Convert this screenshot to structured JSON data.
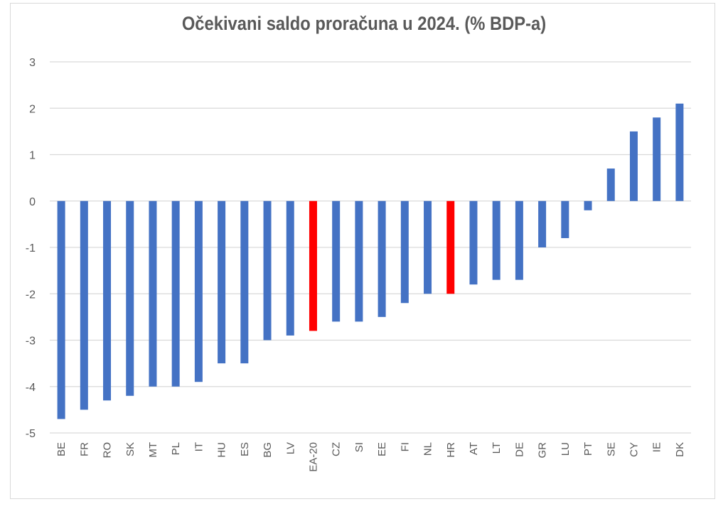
{
  "chart_data": {
    "type": "bar",
    "title": "Očekivani saldo proračuna u 2024. (% BDP-a)",
    "xlabel": "",
    "ylabel": "",
    "ylim": [
      -5,
      3
    ],
    "yticks": [
      3,
      2,
      1,
      0,
      -1,
      -2,
      -3,
      -4,
      -5
    ],
    "grid": true,
    "categories": [
      "BE",
      "FR",
      "RO",
      "SK",
      "MT",
      "PL",
      "IT",
      "HU",
      "ES",
      "BG",
      "LV",
      "EA-20",
      "CZ",
      "SI",
      "EE",
      "FI",
      "NL",
      "HR",
      "AT",
      "LT",
      "DE",
      "GR",
      "LU",
      "PT",
      "SE",
      "CY",
      "IE",
      "DK"
    ],
    "values": [
      -4.7,
      -4.5,
      -4.3,
      -4.2,
      -4.0,
      -4.0,
      -3.9,
      -3.5,
      -3.5,
      -3.0,
      -2.9,
      -2.8,
      -2.6,
      -2.6,
      -2.5,
      -2.2,
      -2.0,
      -2.0,
      -1.8,
      -1.7,
      -1.7,
      -1.0,
      -0.8,
      -0.2,
      0.7,
      1.5,
      1.8,
      2.1
    ],
    "highlighted": [
      "EA-20",
      "HR"
    ],
    "colors": {
      "default": "#4472c4",
      "highlight": "#ff0000",
      "grid": "#d9d9d9",
      "text": "#595959"
    }
  }
}
